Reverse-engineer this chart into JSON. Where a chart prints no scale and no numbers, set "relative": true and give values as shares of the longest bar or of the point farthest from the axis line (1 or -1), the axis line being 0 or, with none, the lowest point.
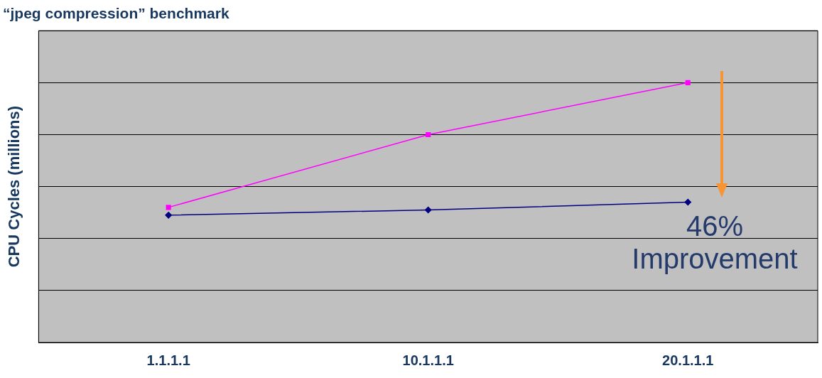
{
  "chart_data": {
    "type": "line",
    "title": "“jpeg compression” benchmark",
    "ylabel": "CPU Cycles (millions)",
    "categories": [
      "1.1.1.1",
      "10.1.1.1",
      "20.1.1.1"
    ],
    "relative": true,
    "grid": "y",
    "legend": false,
    "line_style": "solid",
    "series": [
      {
        "color": "#ff00ff",
        "marker": "square",
        "values": [
          0.52,
          0.8,
          1
        ]
      },
      {
        "color": "#000080",
        "marker": "diamond",
        "values": [
          0.49,
          0.51,
          0.54
        ]
      }
    ],
    "annotations": [
      "46% Improvement"
    ]
  }
}
